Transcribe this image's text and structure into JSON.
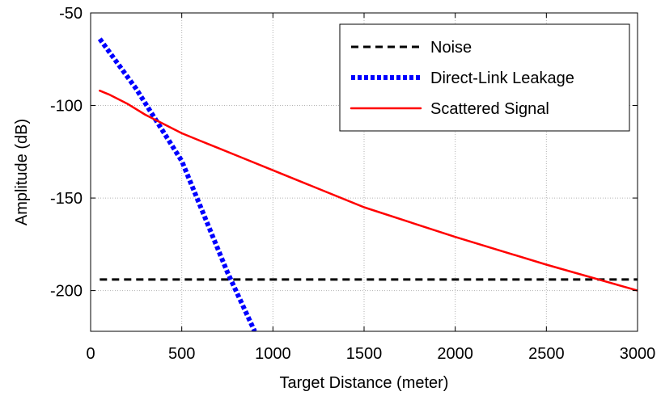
{
  "chart_data": {
    "type": "line",
    "xlabel": "Target Distance (meter)",
    "ylabel": "Amplitude (dB)",
    "xlim": [
      0,
      3000
    ],
    "ylim": [
      -222,
      -50
    ],
    "xticks": [
      0,
      500,
      1000,
      1500,
      2000,
      2500,
      3000
    ],
    "yticks": [
      -50,
      -100,
      -150,
      -200
    ],
    "xtick_labels": [
      "0",
      "500",
      "1000",
      "1500",
      "2000",
      "2500",
      "3000"
    ],
    "ytick_labels": [
      "-50",
      "-100",
      "-150",
      "-200"
    ],
    "grid": true,
    "legend_position": "top-right",
    "series": [
      {
        "name": "Noise",
        "color": "#000000",
        "style": "dashed",
        "x": [
          50,
          3000
        ],
        "y": [
          -194,
          -194
        ]
      },
      {
        "name": "Direct-Link Leakage",
        "color": "#0000ff",
        "style": "dotted",
        "x": [
          50,
          250,
          500,
          750,
          900
        ],
        "y": [
          -64,
          -91,
          -130,
          -190,
          -222
        ]
      },
      {
        "name": "Scattered Signal",
        "color": "#ff0000",
        "style": "solid",
        "x": [
          50,
          100,
          200,
          300,
          400,
          500,
          600,
          700,
          800,
          1000,
          1500,
          2000,
          2500,
          3000
        ],
        "y": [
          -92,
          -94,
          -99,
          -105,
          -110,
          -115,
          -119,
          -123,
          -127,
          -135,
          -155,
          -171,
          -186,
          -200
        ]
      }
    ]
  }
}
